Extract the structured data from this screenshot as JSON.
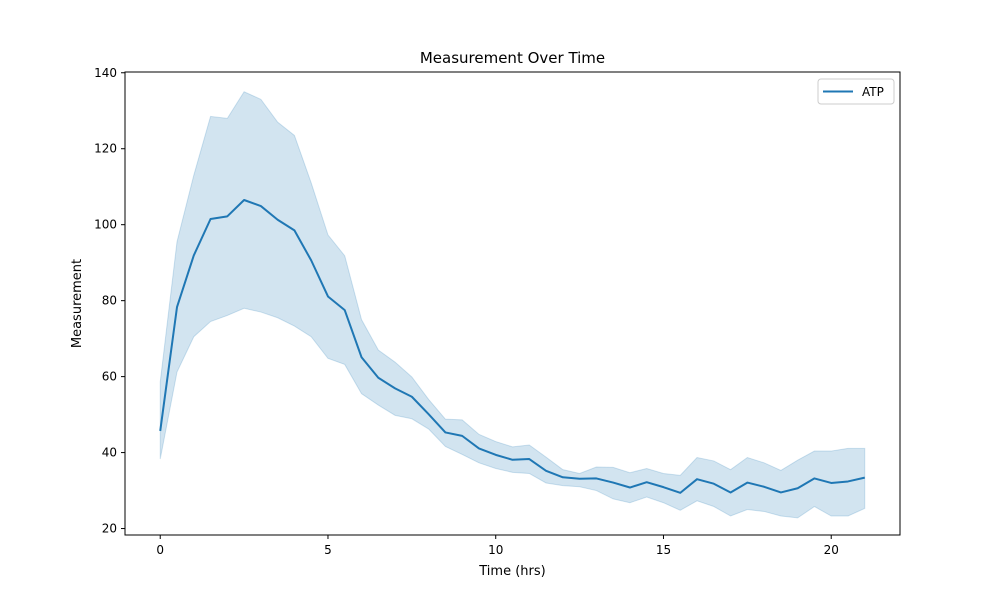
{
  "chart_data": {
    "type": "line",
    "title": "Measurement Over Time",
    "xlabel": "Time (hrs)",
    "ylabel": "Measurement",
    "xlim": [
      -1.05,
      22.05
    ],
    "ylim": [
      18.3,
      140.2
    ],
    "xticks": [
      0,
      5,
      10,
      15,
      20
    ],
    "yticks": [
      20,
      40,
      60,
      80,
      100,
      120,
      140
    ],
    "grid": false,
    "legend_position": "top-right",
    "x": [
      0,
      0.5,
      1,
      1.5,
      2,
      2.5,
      3,
      3.5,
      4,
      4.5,
      5,
      5.5,
      6,
      6.5,
      7,
      7.5,
      8,
      8.5,
      9,
      9.5,
      10,
      10.5,
      11,
      11.5,
      12,
      12.5,
      13,
      13.5,
      14,
      14.5,
      15,
      15.5,
      16,
      16.5,
      17,
      17.5,
      18,
      18.5,
      19,
      19.5,
      20,
      20.5,
      21
    ],
    "series": [
      {
        "name": "ATP",
        "color": "#1f77b4",
        "band_color": "#1f77b4",
        "values": [
          45.7,
          78.3,
          91.9,
          101.5,
          102.2,
          106.5,
          104.9,
          101.3,
          98.5,
          90.6,
          81.1,
          77.5,
          65.1,
          59.7,
          56.9,
          54.7,
          50.1,
          45.3,
          44.4,
          41.1,
          39.4,
          38.1,
          38.3,
          35.2,
          33.5,
          33.1,
          33.2,
          32.1,
          30.8,
          32.2,
          30.9,
          29.4,
          33.0,
          31.8,
          29.5,
          32.1,
          31.0,
          29.5,
          30.6,
          33.2,
          32.0,
          32.4,
          33.4
        ],
        "lower": [
          38.3,
          61.2,
          70.5,
          74.5,
          76.1,
          78.0,
          77.0,
          75.5,
          73.3,
          70.5,
          64.8,
          63.2,
          55.5,
          52.5,
          49.8,
          48.9,
          46.2,
          41.6,
          39.5,
          37.3,
          35.8,
          34.8,
          34.5,
          32.0,
          31.3,
          31.0,
          30.0,
          27.8,
          26.8,
          28.3,
          26.8,
          24.8,
          27.3,
          25.8,
          23.3,
          25.0,
          24.5,
          23.3,
          22.8,
          25.8,
          23.3,
          23.3,
          25.3
        ],
        "upper": [
          58.6,
          95.5,
          113.0,
          128.5,
          128.0,
          135.0,
          133.0,
          127.0,
          123.5,
          111.0,
          97.3,
          91.8,
          75.0,
          67.0,
          63.8,
          59.9,
          54.0,
          48.8,
          48.6,
          44.8,
          42.9,
          41.5,
          42.0,
          38.8,
          35.5,
          34.5,
          36.2,
          36.1,
          34.7,
          35.8,
          34.5,
          34.0,
          38.7,
          37.8,
          35.5,
          38.7,
          37.3,
          35.3,
          38.0,
          40.4,
          40.4,
          41.1,
          41.1
        ]
      }
    ]
  }
}
